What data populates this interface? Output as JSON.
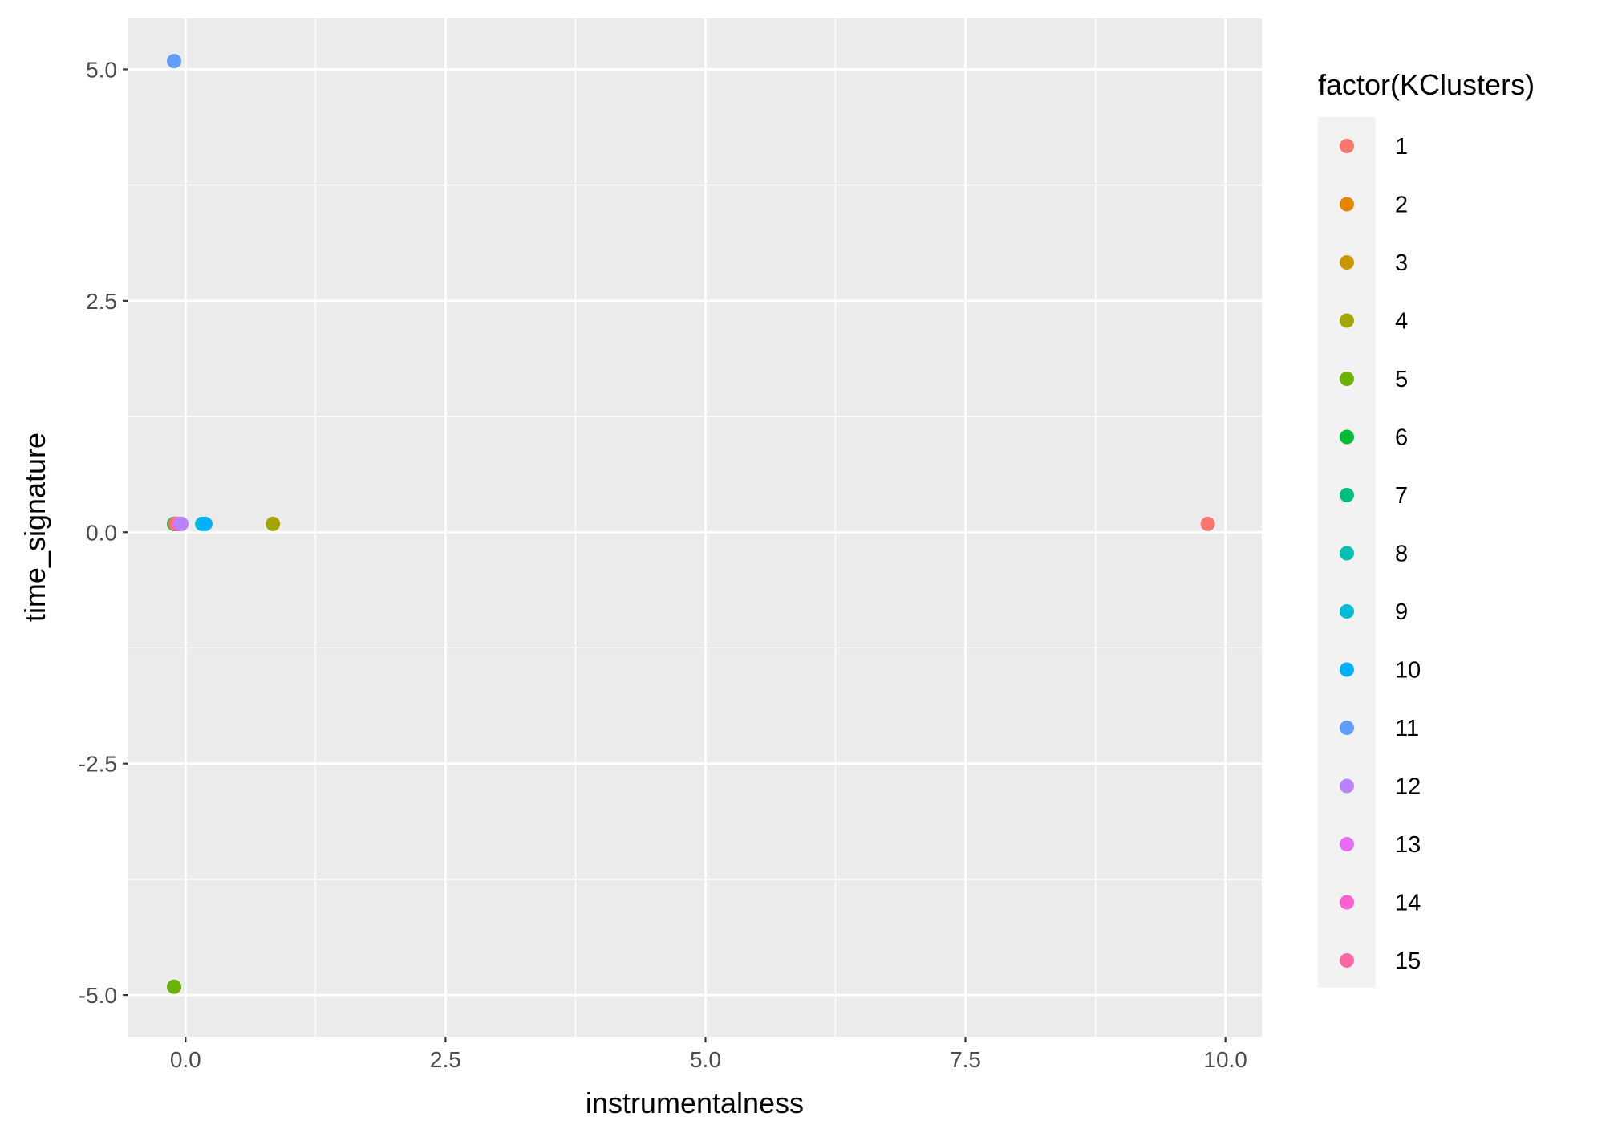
{
  "chart_data": {
    "type": "scatter",
    "xlabel": "instrumentalness",
    "ylabel": "time_signature",
    "xlim": [
      -0.55,
      10.35
    ],
    "ylim": [
      -5.45,
      5.55
    ],
    "x_ticks": [
      0.0,
      2.5,
      5.0,
      7.5,
      10.0
    ],
    "x_tick_labels": [
      "0.0",
      "2.5",
      "5.0",
      "7.5",
      "10.0"
    ],
    "y_ticks": [
      -5.0,
      -2.5,
      0.0,
      2.5,
      5.0
    ],
    "y_tick_labels": [
      "-5.0",
      "-2.5",
      "0.0",
      "2.5",
      "5.0"
    ],
    "grid": true,
    "legend": {
      "title": "factor(KClusters)",
      "position": "right",
      "entries": [
        {
          "label": "1",
          "color": "#F8766D"
        },
        {
          "label": "2",
          "color": "#E58700"
        },
        {
          "label": "3",
          "color": "#C99800"
        },
        {
          "label": "4",
          "color": "#A3A500"
        },
        {
          "label": "5",
          "color": "#6BB100"
        },
        {
          "label": "6",
          "color": "#00BA38"
        },
        {
          "label": "7",
          "color": "#00BF7D"
        },
        {
          "label": "8",
          "color": "#00C0AF"
        },
        {
          "label": "9",
          "color": "#00BCD8"
        },
        {
          "label": "10",
          "color": "#00B0F6"
        },
        {
          "label": "11",
          "color": "#619CFF"
        },
        {
          "label": "12",
          "color": "#B983FF"
        },
        {
          "label": "13",
          "color": "#E76BF3"
        },
        {
          "label": "14",
          "color": "#FD61D1"
        },
        {
          "label": "15",
          "color": "#FF67A4"
        }
      ]
    },
    "points": [
      {
        "cluster": "1",
        "x": 9.83,
        "y": 0.09
      },
      {
        "cluster": "4",
        "x": 0.84,
        "y": 0.09
      },
      {
        "cluster": "5",
        "x": -0.11,
        "y": -4.91
      },
      {
        "cluster": "11",
        "x": -0.11,
        "y": 5.09
      },
      {
        "cluster": "6",
        "x": -0.11,
        "y": 0.09
      },
      {
        "cluster": "7",
        "x": -0.11,
        "y": 0.09
      },
      {
        "cluster": "8",
        "x": -0.11,
        "y": 0.09
      },
      {
        "cluster": "2",
        "x": -0.1,
        "y": 0.09
      },
      {
        "cluster": "3",
        "x": -0.09,
        "y": 0.09
      },
      {
        "cluster": "15",
        "x": -0.08,
        "y": 0.09
      },
      {
        "cluster": "14",
        "x": -0.06,
        "y": 0.09
      },
      {
        "cluster": "13",
        "x": -0.05,
        "y": 0.09
      },
      {
        "cluster": "12",
        "x": -0.04,
        "y": 0.09
      },
      {
        "cluster": "9",
        "x": 0.16,
        "y": 0.09
      },
      {
        "cluster": "10",
        "x": 0.19,
        "y": 0.09
      }
    ]
  }
}
